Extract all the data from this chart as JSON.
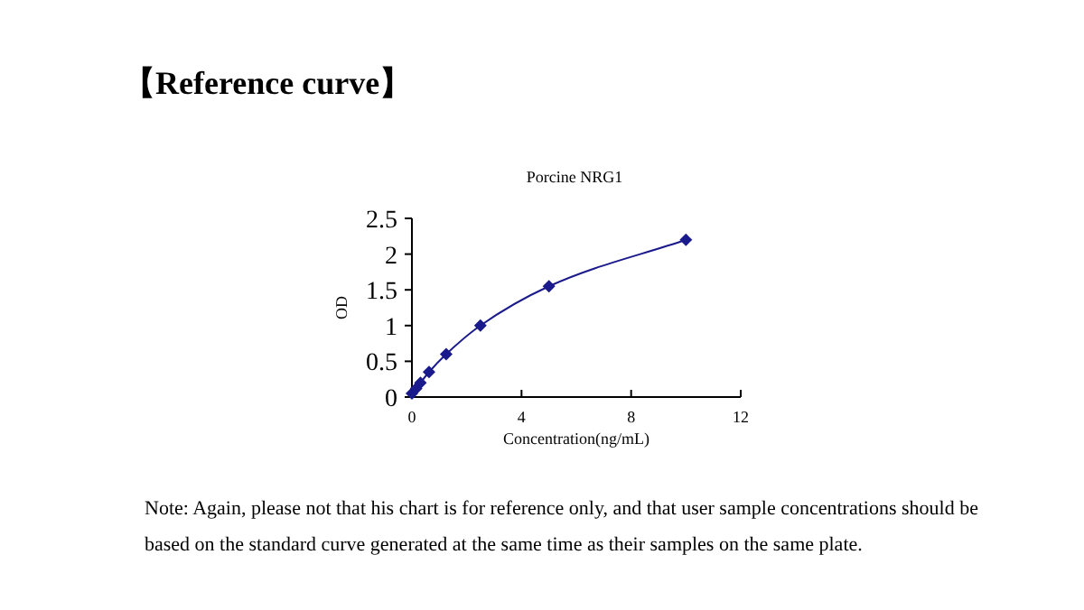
{
  "chart_data": {
    "type": "line",
    "title": "【Reference curve】",
    "subtitle": "Porcine NRG1",
    "xlabel": "Concentration(ng/mL)",
    "ylabel": "OD",
    "x": [
      0,
      0.156,
      0.312,
      0.625,
      1.25,
      2.5,
      5,
      10
    ],
    "series": [
      {
        "color": "#1a1a8c",
        "values": [
          0.05,
          0.12,
          0.2,
          0.35,
          0.6,
          1.0,
          1.55,
          2.2
        ]
      }
    ],
    "xlim": [
      0,
      12
    ],
    "xticks": [
      0,
      4,
      8,
      12
    ],
    "ylim": [
      0,
      2.5
    ],
    "yticks": [
      0,
      0.5,
      1,
      1.5,
      2,
      2.5
    ],
    "marker": "diamond",
    "line_style": "solid",
    "annotations": [
      "Note: Again, please not that his chart is for reference only, and that user sample concentrations should be based on the standard curve generated at the same time as their samples on the same plate."
    ]
  }
}
